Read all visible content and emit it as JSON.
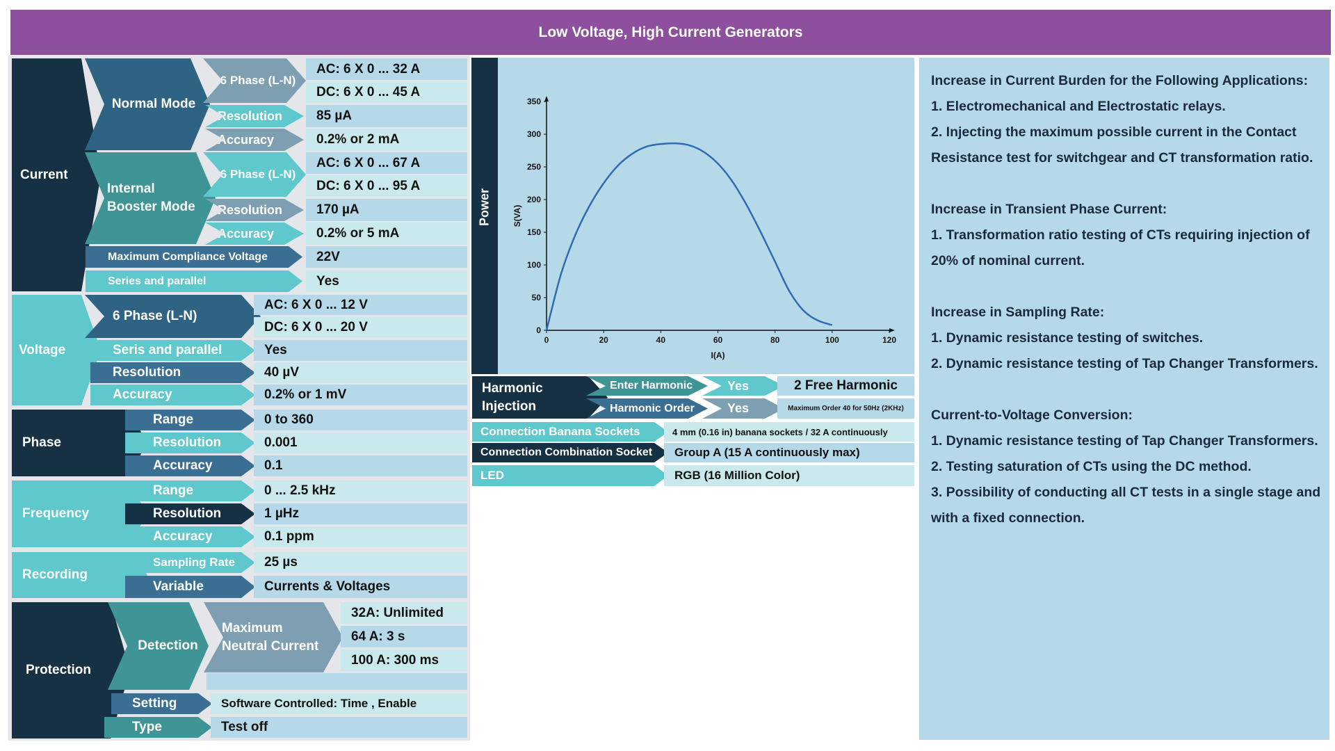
{
  "header": {
    "title": "Low Voltage, High Current Generators"
  },
  "current": {
    "label": "Current",
    "normal_mode": {
      "label": "Normal Mode",
      "six_phase": "6 Phase (L-N)",
      "ac": "AC: 6 X 0 ... 32 A",
      "dc": "DC: 6 X 0 ... 45 A",
      "resolution_label": "Resolution",
      "resolution": "85 µA",
      "accuracy_label": "Accuracy",
      "accuracy": "0.2% or 2 mA"
    },
    "booster_mode": {
      "label_line1": "Internal",
      "label_line2": "Booster Mode",
      "six_phase": "6 Phase (L-N)",
      "ac": "AC: 6 X 0 ... 67 A",
      "dc": "DC: 6 X 0 ... 95 A",
      "resolution_label": "Resolution",
      "resolution": "170 µA",
      "accuracy_label": "Accuracy",
      "accuracy": "0.2% or 5 mA"
    },
    "compliance_label": "Maximum Compliance Voltage",
    "compliance": "22V",
    "series_label": "Series and parallel",
    "series": "Yes"
  },
  "voltage": {
    "label": "Voltage",
    "six_phase": "6 Phase (L-N)",
    "ac": "AC: 6 X 0 ... 12 V",
    "dc": "DC: 6 X 0 ... 20 V",
    "series_label": "Seris and parallel",
    "series": "Yes",
    "resolution_label": "Resolution",
    "resolution": "40 µV",
    "accuracy_label": "Accuracy",
    "accuracy": "0.2% or 1 mV"
  },
  "phase": {
    "label": "Phase",
    "range_label": "Range",
    "range": "0  to 360",
    "resolution_label": "Resolution",
    "resolution": "0.001",
    "accuracy_label": "Accuracy",
    "accuracy": "0.1"
  },
  "frequency": {
    "label": "Frequency",
    "range_label": "Range",
    "range": "0 ... 2.5 kHz",
    "resolution_label": "Resolution",
    "resolution": "1 µHz",
    "accuracy_label": "Accuracy",
    "accuracy": "0.1 ppm"
  },
  "recording": {
    "label": "Recording",
    "sampling_label": "Sampling Rate",
    "sampling": "25 µs",
    "variable_label": "Variable",
    "variable": "Currents & Voltages"
  },
  "protection": {
    "label": "Protection",
    "detection_label": "Detection",
    "neutral_line1": "Maximum",
    "neutral_line2": "Neutral Current",
    "n1": "32A: Unlimited",
    "n2": "64 A: 3 s",
    "n3": "100 A: 300 ms",
    "setting_label": "Setting",
    "setting": "Software Controlled: Time , Enable",
    "type_label": "Type",
    "type": "Test off"
  },
  "power": {
    "label": "Power"
  },
  "chart_data": {
    "type": "line",
    "xlabel": "I(A)",
    "ylabel": "S(VA)",
    "xlim": [
      0,
      120
    ],
    "ylim": [
      0,
      350
    ],
    "xticks": [
      "0",
      "20",
      "40",
      "60",
      "80",
      "100",
      "120"
    ],
    "yticks": [
      "0",
      "50",
      "100",
      "150",
      "200",
      "250",
      "300",
      "350"
    ],
    "series": [
      {
        "x": [
          0,
          5,
          10,
          15,
          20,
          25,
          30,
          35,
          40,
          45,
          50,
          55,
          60,
          65,
          70,
          75,
          80,
          85,
          90,
          95,
          100
        ],
        "y": [
          0,
          85,
          145,
          190,
          225,
          252,
          270,
          281,
          285,
          286,
          283,
          273,
          255,
          228,
          192,
          150,
          105,
          60,
          30,
          15,
          8
        ]
      }
    ],
    "color": "#2d6cb5"
  },
  "harmonic": {
    "label_line1": "Harmonic",
    "label_line2": "Injection",
    "enter_label": "Enter Harmonic",
    "enter_yes": "Yes",
    "enter_value": "2 Free Harmonic",
    "order_label": "Harmonic Order",
    "order_yes": "Yes",
    "order_value": "Maximum Order 40 for 50Hz (2KHz)"
  },
  "connections": {
    "banana_label": "Connection Banana Sockets",
    "banana": "4 mm (0.16 in) banana sockets / 32 A continuously",
    "combo_label": "Connection Combination Socket",
    "combo": "Group A (15 A continuously max)",
    "led_label": "LED",
    "led": "RGB (16 Million Color)"
  },
  "applications": {
    "burden_title": "Increase in Current Burden for the Following Applications:",
    "burden_1": "1. Electromechanical and Electrostatic relays.",
    "burden_2": "2. Injecting the maximum possible current in the Contact Resistance test for switchgear and CT transformation ratio.",
    "transient_title": "Increase in Transient Phase Current:",
    "transient_1": "1. Transformation ratio testing of CTs requiring injection of 20% of nominal current.",
    "sampling_title": "Increase in Sampling Rate:",
    "sampling_1": "1. Dynamic resistance testing of switches.",
    "sampling_2": "2. Dynamic resistance testing of Tap Changer Transformers.",
    "conversion_title": "Current-to-Voltage Conversion:",
    "conversion_1": "1. Dynamic resistance testing of Tap Changer Transformers.",
    "conversion_2": "2. Testing saturation of CTs using the DC method.",
    "conversion_3": "3. Possibility of conducting all CT tests in a single stage and with a fixed connection."
  }
}
